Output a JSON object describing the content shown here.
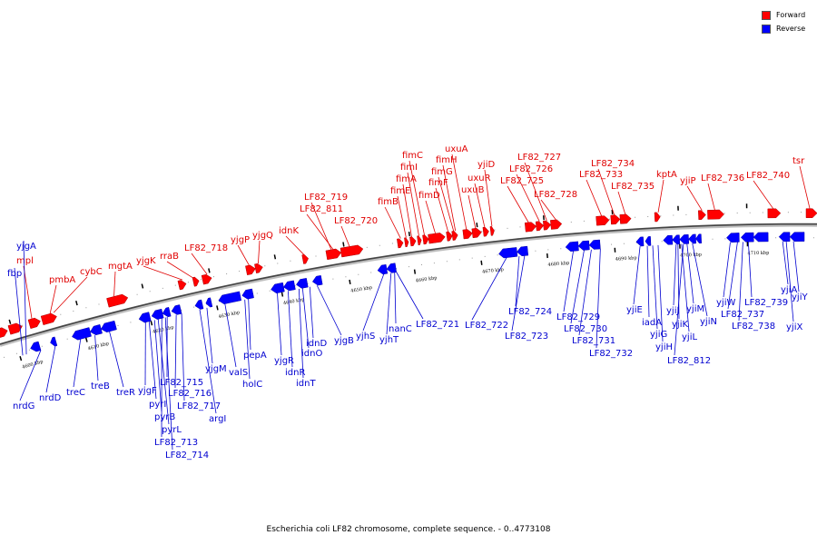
{
  "legend": [
    {
      "label": "Forward",
      "color": "#ff0000"
    },
    {
      "label": "Reverse",
      "color": "#0000ff"
    }
  ],
  "caption": "Escherichia coli LF82 chromosome, complete sequence. - 0..4773108",
  "axis": {
    "ticks": [
      "4600 kbp",
      "4610 kbp",
      "4620 kbp",
      "4630 kbp",
      "4640 kbp",
      "4650 kbp",
      "4660 kbp",
      "4670 kbp",
      "4680 kbp",
      "4690 kbp",
      "4700 kbp",
      "4710 kbp"
    ]
  },
  "genes_forward": [
    "mpl",
    "pmbA",
    "cybC",
    "mgtA",
    "yjgK",
    "rraB",
    "LF82_718",
    "yjgP",
    "yjgQ",
    "idnK",
    "LF82_719",
    "LF82_811",
    "LF82_720",
    "fimB",
    "fimE",
    "fimA",
    "fimI",
    "fimC",
    "fimD",
    "fimF",
    "fimG",
    "fimH",
    "uxuA",
    "uxuB",
    "uxuR",
    "yjiD",
    "LF82_725",
    "LF82_726",
    "LF82_727",
    "LF82_728",
    "LF82_733",
    "LF82_734",
    "LF82_735",
    "kptA",
    "yjiP",
    "LF82_736",
    "LF82_740",
    "tsr"
  ],
  "genes_reverse": [
    "yjgA",
    "fbp",
    "nrdG",
    "nrdD",
    "treC",
    "treB",
    "treR",
    "yjgF",
    "pyrI",
    "pyrB",
    "pyrL",
    "LF82_713",
    "LF82_714",
    "LF82_715",
    "LF82_716",
    "LF82_717",
    "argI",
    "yjgM",
    "valS",
    "holC",
    "pepA",
    "yjgR",
    "idnR",
    "idnT",
    "idnO",
    "idnD",
    "yjgB",
    "yjhS",
    "yjhT",
    "nanC",
    "LF82_721",
    "LF82_722",
    "LF82_724",
    "LF82_723",
    "LF82_729",
    "LF82_730",
    "LF82_731",
    "LF82_732",
    "yjiE",
    "iadA",
    "yjiG",
    "yjiH",
    "yjiJ",
    "yjiK",
    "yjiL",
    "LF82_812",
    "yjiM",
    "yjiN",
    "yjiW",
    "LF82_737",
    "LF82_738",
    "LF82_739",
    "yjiA",
    "yjiX",
    "yjiY"
  ]
}
